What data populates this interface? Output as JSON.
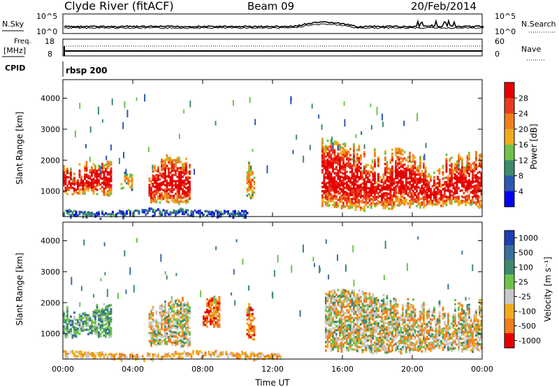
{
  "header": {
    "station": "Clyde River (fitACF)",
    "beam": "Beam 09",
    "date": "20/Feb/2014"
  },
  "chart_data": [
    {
      "type": "line",
      "panel": "noise",
      "left_label": "N.Sky",
      "right_label": "N.Search",
      "left_ticks": [
        "10^5",
        "10^0"
      ],
      "right_ticks": [
        "10^5",
        "10^0"
      ]
    },
    {
      "type": "line",
      "panel": "frequency",
      "left_label_1": "Freq.",
      "left_label_2": "[MHz]",
      "left_ticks": [
        18,
        8
      ],
      "right_label": "Nave",
      "right_ticks": [
        60,
        0
      ],
      "freq_mhz_approx": 10.5,
      "nave_approx": 38
    },
    {
      "type": "table",
      "panel": "cpid",
      "label": "CPID",
      "value": "rbsp 200"
    },
    {
      "type": "heatmap",
      "panel": "power",
      "ylabel": "Slant Range [km]",
      "ylim": [
        180,
        4600
      ],
      "yticks": [
        1000,
        2000,
        3000,
        4000
      ],
      "colorbar_label": "Power [dB]",
      "colorbar_ticks": [
        "4",
        "8",
        "12",
        "16",
        "20",
        "24",
        "28"
      ],
      "colorbar_range": [
        0,
        32
      ],
      "colors": [
        "#0000ee",
        "#2c58b4",
        "#3f8a6c",
        "#6cc44a",
        "#f2ab1c",
        "#f07e20",
        "#e83a1e",
        "#e60000"
      ],
      "echo_regions": [
        {
          "t_start": 0.0,
          "t_end": 2.8,
          "r_low": 900,
          "r_high": 2100,
          "level": "high"
        },
        {
          "t_start": 3.3,
          "t_end": 4.0,
          "r_low": 1100,
          "r_high": 1700,
          "level": "medium"
        },
        {
          "t_start": 4.9,
          "t_end": 7.3,
          "r_low": 600,
          "r_high": 2300,
          "level": "high"
        },
        {
          "t_start": 10.5,
          "t_end": 11.0,
          "r_low": 800,
          "r_high": 2000,
          "level": "medium"
        },
        {
          "t_start": 14.8,
          "t_end": 19.0,
          "r_low": 400,
          "r_high": 2800,
          "level": "high"
        },
        {
          "t_start": 19.0,
          "t_end": 24.0,
          "r_low": 500,
          "r_high": 2500,
          "level": "high"
        },
        {
          "t_start": 0.0,
          "t_end": 10.6,
          "r_low": 180,
          "r_high": 450,
          "level": "low"
        }
      ]
    },
    {
      "type": "heatmap",
      "panel": "velocity",
      "ylabel": "Slant Range [km]",
      "ylim": [
        180,
        4600
      ],
      "yticks": [
        1000,
        2000,
        3000,
        4000
      ],
      "colorbar_label": "Velocity [m s⁻¹]",
      "colorbar_ticks": [
        "1000",
        "500",
        "100",
        "25",
        "-25",
        "-100",
        "-500",
        "-1000"
      ],
      "colors": [
        "#1f3fae",
        "#3b6ea0",
        "#3f8a6c",
        "#6cc44a",
        "#c8c8c8",
        "#f2ab1c",
        "#f07e20",
        "#e60000"
      ],
      "echo_regions": [
        {
          "t_start": 0.0,
          "t_end": 2.8,
          "r_low": 900,
          "r_high": 2100,
          "velocity": "positive"
        },
        {
          "t_start": 4.9,
          "t_end": 7.3,
          "r_low": 600,
          "r_high": 2300,
          "velocity": "mixed"
        },
        {
          "t_start": 8.0,
          "t_end": 9.0,
          "r_low": 1200,
          "r_high": 2300,
          "velocity": "negative"
        },
        {
          "t_start": 10.5,
          "t_end": 11.0,
          "r_low": 800,
          "r_high": 2000,
          "velocity": "negative"
        },
        {
          "t_start": 15.0,
          "t_end": 24.0,
          "r_low": 400,
          "r_high": 2500,
          "velocity": "mixed"
        },
        {
          "t_start": 0.0,
          "t_end": 12.5,
          "r_low": 180,
          "r_high": 450,
          "velocity": "slightly negative"
        }
      ]
    }
  ],
  "x_axis": {
    "label": "Time UT",
    "ticks": [
      "00:00",
      "04:00",
      "08:00",
      "12:00",
      "16:00",
      "20:00",
      "00:00"
    ],
    "range_hours": [
      0,
      24
    ]
  }
}
